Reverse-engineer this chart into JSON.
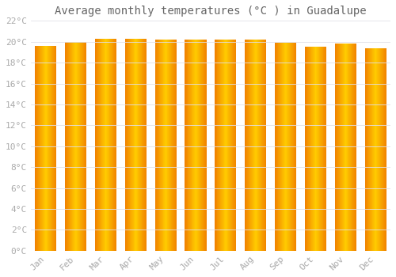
{
  "title": "Average monthly temperatures (°C ) in Guadalupe",
  "months": [
    "Jan",
    "Feb",
    "Mar",
    "Apr",
    "May",
    "Jun",
    "Jul",
    "Aug",
    "Sep",
    "Oct",
    "Nov",
    "Dec"
  ],
  "temperatures": [
    19.6,
    20.0,
    20.3,
    20.3,
    20.2,
    20.2,
    20.2,
    20.2,
    19.9,
    19.5,
    19.8,
    19.4
  ],
  "ylim": [
    0,
    22
  ],
  "yticks": [
    0,
    2,
    4,
    6,
    8,
    10,
    12,
    14,
    16,
    18,
    20,
    22
  ],
  "ytick_labels": [
    "0°C",
    "2°C",
    "4°C",
    "6°C",
    "8°C",
    "10°C",
    "12°C",
    "14°C",
    "16°C",
    "18°C",
    "20°C",
    "22°C"
  ],
  "bar_color_center": "#FFCC00",
  "bar_color_edge": "#F08000",
  "background_color": "#FFFFFF",
  "grid_color": "#E0E0E8",
  "title_fontsize": 10,
  "tick_fontsize": 8,
  "font_color": "#AAAAAA",
  "title_color": "#666666"
}
